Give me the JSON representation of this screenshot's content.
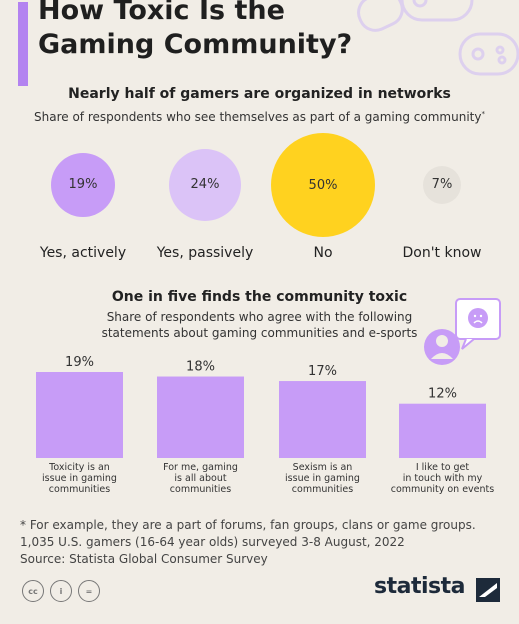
{
  "title_lines": [
    "How Toxic Is the",
    "Gaming Community?"
  ],
  "section1": {
    "heading": "Nearly half of gamers are organized in networks",
    "subtitle": "Share of respondents who see themselves as part of a gaming community",
    "subtitle_mark": "*"
  },
  "section2": {
    "heading": "One in five finds the community toxic",
    "subtitle_lines": [
      "Share of respondents who agree with the following",
      "statements about gaming communities and e-sports"
    ]
  },
  "chart_data": [
    {
      "type": "bubble",
      "categories": [
        "Yes, actively",
        "Yes, passively",
        "No",
        "Don't know"
      ],
      "values": [
        19,
        24,
        50,
        7
      ],
      "value_labels": [
        "19%",
        "24%",
        "50%",
        "7%"
      ],
      "colors": [
        "#c79cf7",
        "#dbc3f7",
        "#ffd21f",
        "#e6e2db"
      ]
    },
    {
      "type": "bar",
      "categories": [
        [
          "Toxicity is an",
          "issue in gaming",
          "communities"
        ],
        [
          "For me, gaming",
          "is all about",
          "communities"
        ],
        [
          "Sexism is an",
          "issue in gaming",
          "communities"
        ],
        [
          "I like to get",
          "in touch with my",
          "community on events"
        ]
      ],
      "values": [
        19,
        18,
        17,
        12
      ],
      "value_labels": [
        "19%",
        "18%",
        "17%",
        "12%"
      ],
      "color": "#c79cf7",
      "ylim": [
        0,
        19
      ]
    }
  ],
  "footnotes": [
    "* For example, they are a part of forums, fan groups, clans or game groups.",
    "1,035 U.S. gamers (16-64 year olds) surveyed 3-8 August, 2022",
    "Source: Statista Global Consumer Survey"
  ],
  "license_icons": [
    "cc",
    "i",
    "="
  ],
  "logo": "statista",
  "icons": [
    "gamepad-icon",
    "speech-bubble-sad-face-icon",
    "user-icon"
  ]
}
